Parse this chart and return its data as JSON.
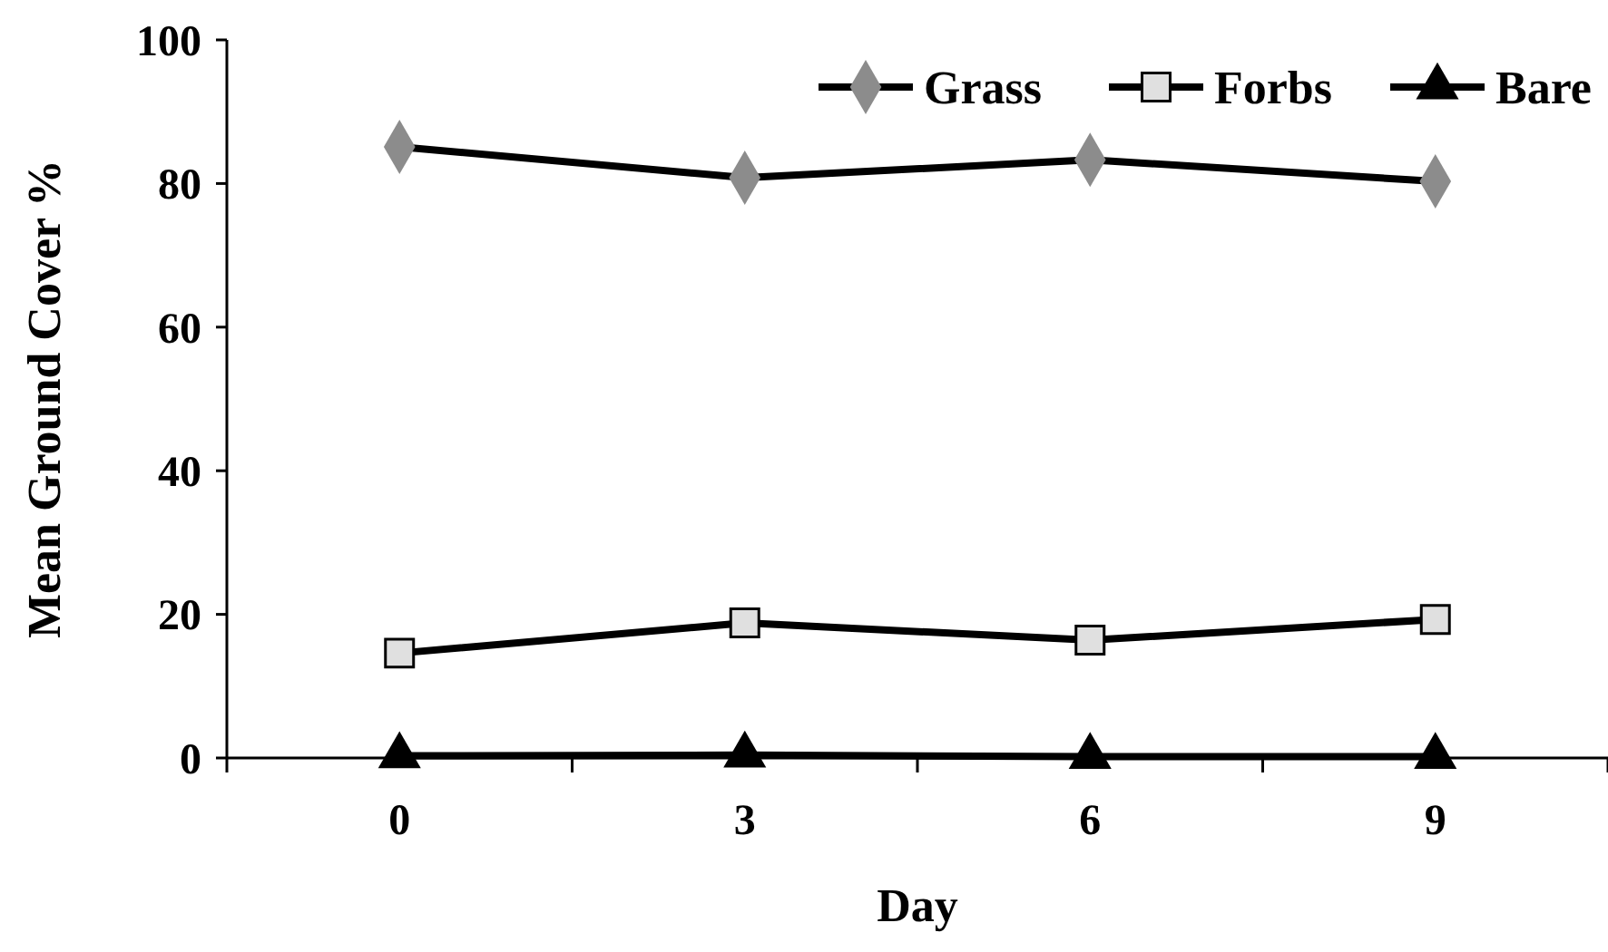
{
  "chart_data": {
    "type": "line",
    "xlabel": "Day",
    "ylabel": "Mean Ground Cover %",
    "categories": [
      "0",
      "3",
      "6",
      "9"
    ],
    "ylim": [
      0,
      100
    ],
    "yticks": [
      0,
      20,
      40,
      60,
      80,
      100
    ],
    "legend": "top right",
    "series": [
      {
        "name": "Grass",
        "color": "#8c8c8c",
        "marker": "diamond",
        "values": [
          85.1,
          80.8,
          83.3,
          80.3
        ]
      },
      {
        "name": "Forbs",
        "color": "#e0e0e0",
        "marker": "square",
        "values": [
          14.6,
          18.8,
          16.4,
          19.3
        ]
      },
      {
        "name": "Bare",
        "color": "#000000",
        "marker": "triangle",
        "values": [
          0.3,
          0.4,
          0.2,
          0.2
        ]
      }
    ]
  }
}
